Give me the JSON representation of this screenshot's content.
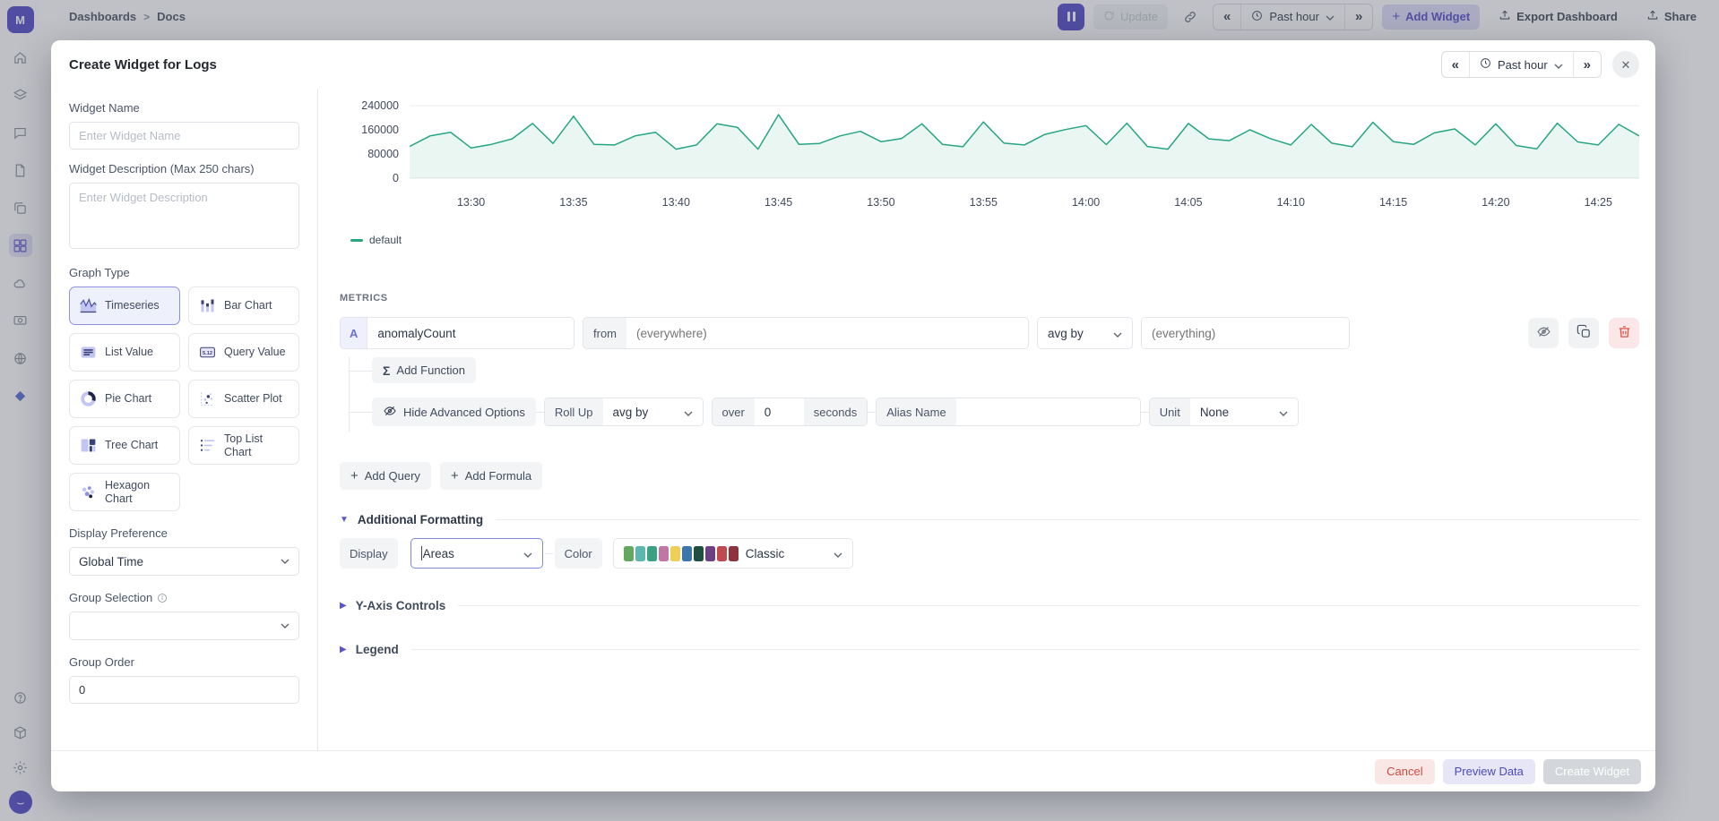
{
  "topbar": {
    "breadcrumb": {
      "items": [
        "Dashboards",
        "Docs"
      ],
      "separator": ">"
    },
    "update_label": "Update",
    "time_range": "Past hour",
    "add_widget_label": "Add Widget",
    "export_label": "Export Dashboard",
    "share_label": "Share"
  },
  "modal": {
    "title": "Create Widget for Logs",
    "time_range": "Past hour",
    "left_panel": {
      "widget_name": {
        "label": "Widget Name",
        "placeholder": "Enter Widget Name",
        "value": ""
      },
      "widget_description": {
        "label": "Widget Description (Max 250 chars)",
        "placeholder": "Enter Widget Description",
        "value": ""
      },
      "graph_type": {
        "label": "Graph Type",
        "options": [
          {
            "label": "Timeseries",
            "icon": "timeseries-icon",
            "selected": true
          },
          {
            "label": "Bar Chart",
            "icon": "bar-chart-icon",
            "selected": false
          },
          {
            "label": "List Value",
            "icon": "list-value-icon",
            "selected": false
          },
          {
            "label": "Query Value",
            "icon": "query-value-icon",
            "selected": false
          },
          {
            "label": "Pie Chart",
            "icon": "pie-chart-icon",
            "selected": false
          },
          {
            "label": "Scatter Plot",
            "icon": "scatter-plot-icon",
            "selected": false
          },
          {
            "label": "Tree Chart",
            "icon": "tree-chart-icon",
            "selected": false
          },
          {
            "label": "Top List Chart",
            "icon": "top-list-chart-icon",
            "selected": false
          },
          {
            "label": "Hexagon Chart",
            "icon": "hexagon-chart-icon",
            "selected": false
          }
        ]
      },
      "display_preference": {
        "label": "Display Preference",
        "value": "Global Time"
      },
      "group_selection": {
        "label": "Group Selection",
        "value": ""
      },
      "group_order": {
        "label": "Group Order",
        "value": "0"
      }
    },
    "metrics": {
      "section_label": "METRICS",
      "query": {
        "letter": "A",
        "metric_value": "anomalyCount",
        "from_label": "from",
        "from_placeholder": "(everywhere)",
        "agg_value": "avg by",
        "agg_placeholder": "(everything)"
      },
      "add_function_label": "Add Function",
      "advanced": {
        "toggle_label": "Hide Advanced Options",
        "rollup_label": "Roll Up",
        "rollup_value": "avg by",
        "over_label": "over",
        "over_value": "0",
        "seconds_label": "seconds",
        "alias_label": "Alias Name",
        "alias_value": "",
        "unit_label": "Unit",
        "unit_value": "None"
      },
      "add_query_label": "Add Query",
      "add_formula_label": "Add Formula"
    },
    "formatting": {
      "section_label": "Additional Formatting",
      "display_label": "Display",
      "display_value": "Areas",
      "color_label": "Color",
      "color_value": "Classic",
      "palette": [
        "#63a85e",
        "#5cb8ac",
        "#3ba184",
        "#c077a3",
        "#edd054",
        "#3b77ab",
        "#1f4f41",
        "#6d4084",
        "#c04a50",
        "#8e343c"
      ]
    },
    "collapsed_sections": {
      "y_axis": "Y-Axis Controls",
      "legend": "Legend"
    },
    "footer": {
      "cancel": "Cancel",
      "preview": "Preview Data",
      "create": "Create Widget"
    }
  },
  "chart_data": {
    "type": "area",
    "title": "",
    "xlabel": "",
    "ylabel": "",
    "legend": [
      "default"
    ],
    "legend_position": "bottom-left",
    "grid": "top-gridline-and-baseline",
    "line_color": "#27a583",
    "fill_opacity": 0.1,
    "ylim": [
      0,
      240000
    ],
    "y_ticks": [
      240000,
      160000,
      80000,
      0
    ],
    "x_start": "13:27",
    "x_step_minutes": 1,
    "x_tick_first_offset_minutes": 3,
    "x_tick_interval_minutes": 5,
    "x_tick_labels": [
      "13:30",
      "13:35",
      "13:40",
      "13:45",
      "13:50",
      "13:55",
      "14:00",
      "14:05",
      "14:10",
      "14:15",
      "14:20",
      "14:25"
    ],
    "series": [
      {
        "name": "default",
        "values": [
          105000,
          140000,
          152000,
          100000,
          112000,
          130000,
          181000,
          115000,
          205000,
          112000,
          110000,
          140000,
          152000,
          96000,
          110000,
          180000,
          168000,
          96000,
          210000,
          112000,
          115000,
          140000,
          155000,
          121000,
          131000,
          180000,
          112000,
          104000,
          186000,
          116000,
          110000,
          145000,
          161000,
          174000,
          111000,
          182000,
          105000,
          96000,
          181000,
          130000,
          124000,
          160000,
          131000,
          110000,
          178000,
          116000,
          104000,
          185000,
          121000,
          112000,
          150000,
          163000,
          110000,
          180000,
          108000,
          97000,
          182000,
          120000,
          110000,
          178000,
          140000
        ]
      }
    ]
  },
  "colors": {
    "accent": "#534ccb",
    "series_green": "#27a583",
    "danger": "#d9534a"
  }
}
